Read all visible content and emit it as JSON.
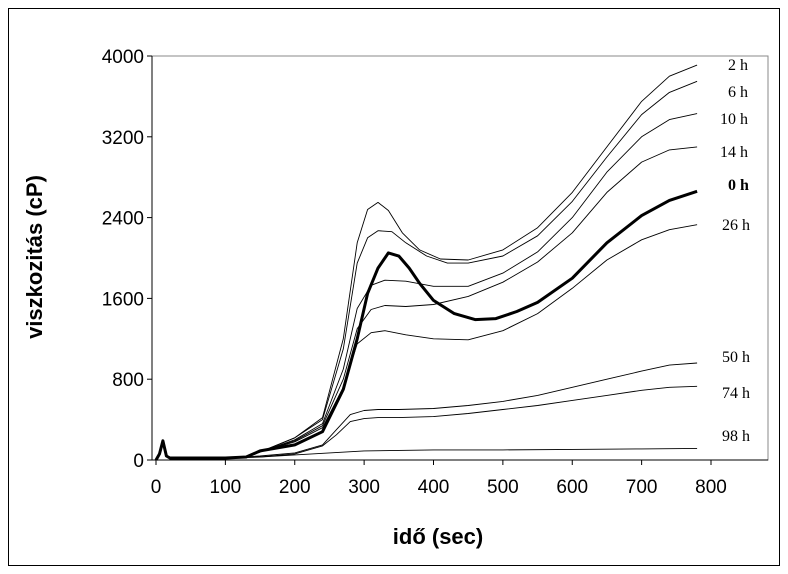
{
  "chart_data": {
    "type": "line",
    "xlabel": "idő (sec)",
    "ylabel": "viszkozitás (cP)",
    "xlim": [
      0,
      800
    ],
    "ylim": [
      0,
      4000
    ],
    "xticks": [
      0,
      100,
      200,
      300,
      400,
      500,
      600,
      700,
      800
    ],
    "yticks": [
      0,
      800,
      1600,
      2400,
      3200,
      4000
    ],
    "grid": false,
    "series": [
      {
        "name": "2 h",
        "bold": false,
        "x": [
          0,
          5,
          10,
          15,
          20,
          50,
          100,
          130,
          150,
          200,
          240,
          270,
          290,
          305,
          320,
          335,
          355,
          380,
          410,
          450,
          500,
          550,
          600,
          650,
          700,
          740,
          780
        ],
        "y": [
          0,
          60,
          190,
          40,
          20,
          20,
          20,
          30,
          80,
          220,
          420,
          1200,
          2150,
          2480,
          2550,
          2470,
          2250,
          2080,
          1990,
          1980,
          2080,
          2300,
          2650,
          3100,
          3550,
          3800,
          3910
        ]
      },
      {
        "name": "6 h",
        "bold": false,
        "x": [
          0,
          5,
          10,
          15,
          20,
          50,
          100,
          130,
          150,
          200,
          240,
          270,
          290,
          305,
          320,
          340,
          360,
          390,
          420,
          450,
          500,
          550,
          600,
          650,
          700,
          740,
          780
        ],
        "y": [
          0,
          60,
          190,
          40,
          20,
          20,
          20,
          30,
          80,
          220,
          400,
          1100,
          1950,
          2200,
          2270,
          2260,
          2150,
          2020,
          1950,
          1950,
          2020,
          2220,
          2560,
          3000,
          3420,
          3640,
          3750
        ]
      },
      {
        "name": "10 h",
        "bold": false,
        "x": [
          0,
          5,
          10,
          15,
          20,
          50,
          100,
          130,
          150,
          200,
          240,
          270,
          290,
          310,
          330,
          360,
          400,
          450,
          500,
          550,
          600,
          650,
          700,
          740,
          780
        ],
        "y": [
          0,
          60,
          190,
          40,
          20,
          20,
          20,
          30,
          80,
          200,
          360,
          900,
          1500,
          1730,
          1780,
          1770,
          1720,
          1720,
          1850,
          2060,
          2400,
          2850,
          3200,
          3370,
          3430
        ]
      },
      {
        "name": "14 h",
        "bold": false,
        "x": [
          0,
          5,
          10,
          15,
          20,
          50,
          100,
          130,
          150,
          200,
          240,
          270,
          290,
          310,
          330,
          360,
          400,
          450,
          500,
          550,
          600,
          650,
          700,
          740,
          780
        ],
        "y": [
          0,
          60,
          190,
          40,
          20,
          20,
          20,
          30,
          80,
          190,
          340,
          800,
          1300,
          1490,
          1530,
          1520,
          1540,
          1620,
          1760,
          1960,
          2250,
          2650,
          2950,
          3070,
          3100
        ]
      },
      {
        "name": "0 h",
        "bold": true,
        "x": [
          0,
          5,
          10,
          15,
          20,
          50,
          100,
          130,
          150,
          200,
          240,
          270,
          290,
          305,
          320,
          335,
          350,
          365,
          380,
          400,
          430,
          460,
          490,
          520,
          550,
          600,
          650,
          700,
          740,
          780
        ],
        "y": [
          0,
          60,
          190,
          40,
          20,
          20,
          20,
          30,
          90,
          150,
          280,
          700,
          1200,
          1650,
          1900,
          2050,
          2020,
          1900,
          1750,
          1580,
          1450,
          1390,
          1400,
          1470,
          1560,
          1800,
          2150,
          2420,
          2570,
          2660
        ]
      },
      {
        "name": "26 h",
        "bold": false,
        "x": [
          0,
          5,
          10,
          15,
          20,
          50,
          100,
          130,
          150,
          200,
          240,
          270,
          290,
          310,
          330,
          360,
          400,
          450,
          500,
          550,
          600,
          650,
          700,
          740,
          780
        ],
        "y": [
          0,
          60,
          190,
          40,
          20,
          20,
          20,
          30,
          80,
          180,
          320,
          720,
          1150,
          1260,
          1280,
          1240,
          1200,
          1190,
          1280,
          1450,
          1700,
          1980,
          2180,
          2280,
          2330
        ]
      },
      {
        "name": "50 h",
        "bold": false,
        "x": [
          0,
          5,
          10,
          15,
          20,
          50,
          100,
          150,
          200,
          240,
          260,
          280,
          300,
          320,
          350,
          400,
          450,
          500,
          550,
          600,
          650,
          700,
          740,
          780
        ],
        "y": [
          0,
          60,
          190,
          40,
          20,
          20,
          20,
          40,
          70,
          150,
          300,
          450,
          490,
          500,
          500,
          510,
          540,
          580,
          640,
          720,
          800,
          880,
          940,
          960
        ]
      },
      {
        "name": "74 h",
        "bold": false,
        "x": [
          0,
          5,
          10,
          15,
          20,
          50,
          100,
          150,
          200,
          240,
          260,
          280,
          300,
          320,
          350,
          400,
          450,
          500,
          550,
          600,
          650,
          700,
          740,
          780
        ],
        "y": [
          0,
          60,
          190,
          40,
          20,
          20,
          20,
          30,
          60,
          140,
          250,
          380,
          410,
          420,
          420,
          430,
          460,
          500,
          540,
          590,
          640,
          690,
          720,
          730
        ]
      },
      {
        "name": "98 h",
        "bold": false,
        "x": [
          0,
          5,
          10,
          15,
          20,
          50,
          100,
          150,
          200,
          250,
          300,
          350,
          400,
          500,
          600,
          700,
          780
        ],
        "y": [
          0,
          60,
          190,
          40,
          20,
          20,
          20,
          30,
          50,
          70,
          90,
          95,
          100,
          100,
          105,
          110,
          115
        ]
      }
    ]
  }
}
